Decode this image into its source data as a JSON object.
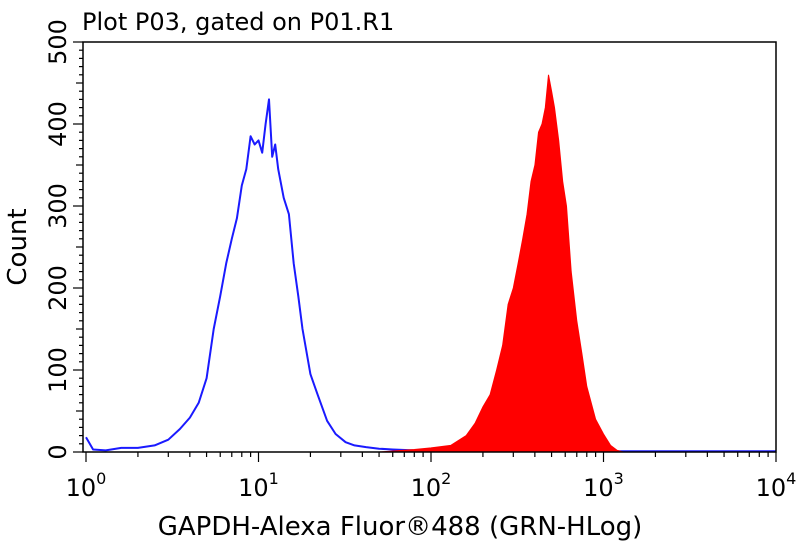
{
  "chart_data": {
    "type": "area",
    "title": "Plot P03, gated on P01.R1",
    "xlabel": "GAPDH-Alexa Fluor®488 (GRN-HLog)",
    "ylabel": "Count",
    "x_scale": "log",
    "xlim": [
      1,
      10000
    ],
    "ylim": [
      0,
      500
    ],
    "x_ticks": [
      {
        "base": "10",
        "exp": "0"
      },
      {
        "base": "10",
        "exp": "1"
      },
      {
        "base": "10",
        "exp": "2"
      },
      {
        "base": "10",
        "exp": "3"
      },
      {
        "base": "10",
        "exp": "4"
      }
    ],
    "y_ticks": [
      "0",
      "100",
      "200",
      "300",
      "400",
      "500"
    ],
    "grid": false,
    "series": [
      {
        "color": "#1a1aff",
        "style": "line",
        "x": [
          1.0,
          1.1,
          1.3,
          1.6,
          2.0,
          2.5,
          3.0,
          3.5,
          4.0,
          4.5,
          5.0,
          5.5,
          6.0,
          6.5,
          7.0,
          7.5,
          8.0,
          8.5,
          9.0,
          9.5,
          10.0,
          10.5,
          11.0,
          11.5,
          12.0,
          12.5,
          13.0,
          14.0,
          15.0,
          16.0,
          17.0,
          18.0,
          20.0,
          22.0,
          25.0,
          28.0,
          32.0,
          36.0,
          42.0,
          50.0,
          60.0,
          80.0,
          100.0,
          200.0,
          1000.0,
          10000.0
        ],
        "y": [
          18,
          3,
          2,
          5,
          5,
          8,
          15,
          28,
          42,
          60,
          90,
          150,
          190,
          230,
          260,
          285,
          325,
          345,
          385,
          375,
          380,
          365,
          400,
          430,
          360,
          375,
          345,
          310,
          290,
          230,
          190,
          150,
          95,
          70,
          38,
          22,
          12,
          8,
          6,
          4,
          3,
          2,
          2,
          1,
          1,
          1
        ]
      },
      {
        "color": "#ff0000",
        "style": "filled",
        "x": [
          50,
          80,
          100,
          130,
          160,
          180,
          200,
          220,
          240,
          260,
          280,
          300,
          320,
          340,
          360,
          380,
          400,
          420,
          440,
          460,
          480,
          500,
          520,
          550,
          580,
          610,
          650,
          700,
          750,
          800,
          900,
          1000,
          1100,
          1200,
          1300
        ],
        "y": [
          0,
          3,
          5,
          8,
          20,
          35,
          55,
          70,
          100,
          130,
          180,
          200,
          230,
          260,
          290,
          330,
          350,
          390,
          400,
          420,
          460,
          440,
          420,
          380,
          330,
          300,
          220,
          160,
          120,
          80,
          40,
          22,
          8,
          2,
          0
        ]
      }
    ]
  }
}
